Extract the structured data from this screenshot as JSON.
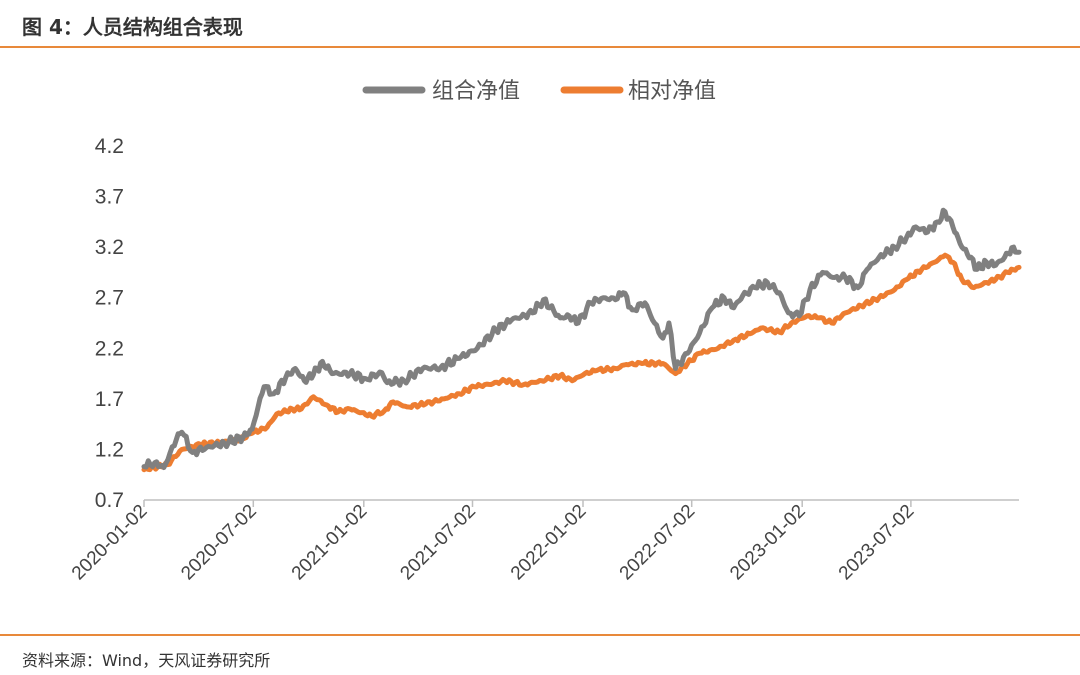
{
  "header": {
    "title": "图 4：人员结构组合表现"
  },
  "footer": {
    "source": "资料来源：Wind，天风证券研究所"
  },
  "colors": {
    "accent": "#E8893A",
    "series_portfolio": "#808080",
    "series_relative": "#ED7D31",
    "axis": "#BFBFBF"
  },
  "chart_data": {
    "type": "line",
    "title": "",
    "xlabel": "",
    "ylabel": "",
    "ylim": [
      0.7,
      4.2
    ],
    "yticks": [
      "4.2",
      "3.7",
      "3.2",
      "2.7",
      "2.2",
      "1.7",
      "1.2",
      "0.7"
    ],
    "xticks": [
      "2020-01-02",
      "2020-07-02",
      "2021-01-02",
      "2021-07-02",
      "2022-01-02",
      "2022-07-02",
      "2023-01-02",
      "2023-07-02"
    ],
    "xlim": [
      "2020-01-02",
      "2023-12-29"
    ],
    "legend": "top-center",
    "grid": false,
    "series": [
      {
        "name": "组合净值",
        "color": "#808080",
        "points": [
          [
            "2020-01-02",
            1.03
          ],
          [
            "2020-01-20",
            1.07
          ],
          [
            "2020-02-04",
            1.02
          ],
          [
            "2020-02-25",
            1.3
          ],
          [
            "2020-03-05",
            1.37
          ],
          [
            "2020-03-23",
            1.17
          ],
          [
            "2020-04-15",
            1.22
          ],
          [
            "2020-05-15",
            1.26
          ],
          [
            "2020-06-15",
            1.32
          ],
          [
            "2020-06-30",
            1.4
          ],
          [
            "2020-07-10",
            1.62
          ],
          [
            "2020-07-20",
            1.82
          ],
          [
            "2020-08-05",
            1.75
          ],
          [
            "2020-08-25",
            1.91
          ],
          [
            "2020-09-10",
            2.0
          ],
          [
            "2020-09-25",
            1.88
          ],
          [
            "2020-10-10",
            1.94
          ],
          [
            "2020-10-25",
            2.07
          ],
          [
            "2020-11-10",
            1.95
          ],
          [
            "2020-12-10",
            1.95
          ],
          [
            "2021-01-05",
            1.9
          ],
          [
            "2021-02-01",
            1.96
          ],
          [
            "2021-02-10",
            1.86
          ],
          [
            "2021-03-10",
            1.88
          ],
          [
            "2021-04-10",
            2.0
          ],
          [
            "2021-05-10",
            2.01
          ],
          [
            "2021-06-10",
            2.1
          ],
          [
            "2021-07-10",
            2.2
          ],
          [
            "2021-08-10",
            2.38
          ],
          [
            "2021-09-05",
            2.48
          ],
          [
            "2021-10-10",
            2.55
          ],
          [
            "2021-10-28",
            2.68
          ],
          [
            "2021-11-25",
            2.5
          ],
          [
            "2021-12-10",
            2.52
          ],
          [
            "2021-12-25",
            2.45
          ],
          [
            "2022-01-15",
            2.65
          ],
          [
            "2022-02-05",
            2.7
          ],
          [
            "2022-02-25",
            2.68
          ],
          [
            "2022-03-10",
            2.75
          ],
          [
            "2022-03-25",
            2.58
          ],
          [
            "2022-04-15",
            2.65
          ],
          [
            "2022-05-01",
            2.45
          ],
          [
            "2022-05-15",
            2.3
          ],
          [
            "2022-05-25",
            2.45
          ],
          [
            "2022-06-05",
            2.0
          ],
          [
            "2022-06-25",
            2.15
          ],
          [
            "2022-07-15",
            2.35
          ],
          [
            "2022-08-05",
            2.6
          ],
          [
            "2022-08-25",
            2.7
          ],
          [
            "2022-09-10",
            2.6
          ],
          [
            "2022-09-25",
            2.72
          ],
          [
            "2022-10-15",
            2.8
          ],
          [
            "2022-11-05",
            2.85
          ],
          [
            "2022-11-25",
            2.75
          ],
          [
            "2022-12-10",
            2.55
          ],
          [
            "2022-12-28",
            2.52
          ],
          [
            "2023-01-15",
            2.78
          ],
          [
            "2023-02-05",
            2.95
          ],
          [
            "2023-02-25",
            2.9
          ],
          [
            "2023-03-15",
            2.9
          ],
          [
            "2023-04-05",
            2.8
          ],
          [
            "2023-04-20",
            2.98
          ],
          [
            "2023-05-10",
            3.1
          ],
          [
            "2023-06-05",
            3.2
          ],
          [
            "2023-06-25",
            3.3
          ],
          [
            "2023-07-10",
            3.4
          ],
          [
            "2023-07-30",
            3.35
          ],
          [
            "2023-08-15",
            3.45
          ],
          [
            "2023-08-28",
            3.55
          ],
          [
            "2023-09-10",
            3.4
          ],
          [
            "2023-09-25",
            3.2
          ],
          [
            "2023-10-10",
            3.1
          ],
          [
            "2023-10-20",
            2.98
          ],
          [
            "2023-11-05",
            3.05
          ],
          [
            "2023-11-20",
            3.02
          ],
          [
            "2023-12-05",
            3.1
          ],
          [
            "2023-12-20",
            3.2
          ],
          [
            "2023-12-29",
            3.15
          ]
        ]
      },
      {
        "name": "相对净值",
        "color": "#ED7D31",
        "points": [
          [
            "2020-01-02",
            1.0
          ],
          [
            "2020-02-10",
            1.05
          ],
          [
            "2020-03-05",
            1.2
          ],
          [
            "2020-04-05",
            1.25
          ],
          [
            "2020-05-10",
            1.27
          ],
          [
            "2020-06-10",
            1.3
          ],
          [
            "2020-06-30",
            1.36
          ],
          [
            "2020-07-25",
            1.42
          ],
          [
            "2020-08-10",
            1.55
          ],
          [
            "2020-09-05",
            1.6
          ],
          [
            "2020-09-20",
            1.6
          ],
          [
            "2020-10-10",
            1.72
          ],
          [
            "2020-11-01",
            1.64
          ],
          [
            "2020-11-20",
            1.57
          ],
          [
            "2020-12-10",
            1.6
          ],
          [
            "2021-01-15",
            1.53
          ],
          [
            "2021-02-05",
            1.58
          ],
          [
            "2021-02-20",
            1.67
          ],
          [
            "2021-03-15",
            1.62
          ],
          [
            "2021-04-15",
            1.65
          ],
          [
            "2021-05-15",
            1.7
          ],
          [
            "2021-06-10",
            1.75
          ],
          [
            "2021-07-05",
            1.82
          ],
          [
            "2021-08-05",
            1.85
          ],
          [
            "2021-08-25",
            1.88
          ],
          [
            "2021-09-25",
            1.84
          ],
          [
            "2021-10-25",
            1.88
          ],
          [
            "2021-11-25",
            1.93
          ],
          [
            "2021-12-15",
            1.88
          ],
          [
            "2022-01-05",
            1.95
          ],
          [
            "2022-01-25",
            1.98
          ],
          [
            "2022-02-25",
            2.0
          ],
          [
            "2022-03-15",
            2.04
          ],
          [
            "2022-04-10",
            2.05
          ],
          [
            "2022-05-15",
            2.05
          ],
          [
            "2022-06-05",
            1.95
          ],
          [
            "2022-06-25",
            2.05
          ],
          [
            "2022-07-15",
            2.15
          ],
          [
            "2022-08-15",
            2.2
          ],
          [
            "2022-09-10",
            2.28
          ],
          [
            "2022-10-10",
            2.35
          ],
          [
            "2022-10-25",
            2.4
          ],
          [
            "2022-11-25",
            2.36
          ],
          [
            "2022-12-15",
            2.45
          ],
          [
            "2023-01-10",
            2.52
          ],
          [
            "2023-01-30",
            2.5
          ],
          [
            "2023-02-20",
            2.45
          ],
          [
            "2023-03-15",
            2.55
          ],
          [
            "2023-04-10",
            2.62
          ],
          [
            "2023-05-10",
            2.7
          ],
          [
            "2023-06-05",
            2.78
          ],
          [
            "2023-06-25",
            2.88
          ],
          [
            "2023-07-20",
            2.98
          ],
          [
            "2023-08-10",
            3.05
          ],
          [
            "2023-08-28",
            3.12
          ],
          [
            "2023-09-10",
            3.05
          ],
          [
            "2023-09-25",
            2.88
          ],
          [
            "2023-10-15",
            2.8
          ],
          [
            "2023-11-05",
            2.85
          ],
          [
            "2023-11-20",
            2.88
          ],
          [
            "2023-12-10",
            2.95
          ],
          [
            "2023-12-29",
            3.0
          ]
        ]
      }
    ]
  }
}
